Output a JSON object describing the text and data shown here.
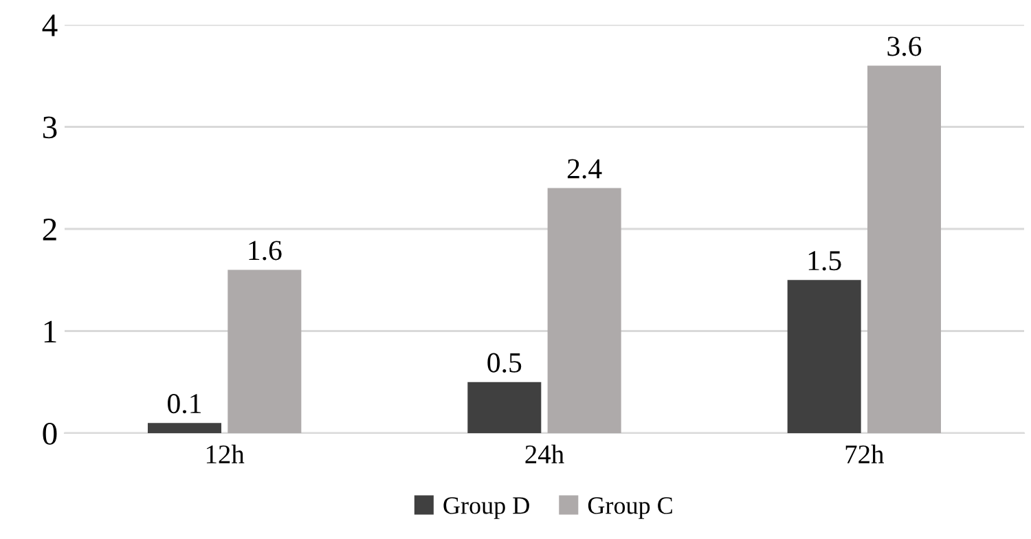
{
  "chart_data": {
    "type": "bar",
    "categories": [
      "12h",
      "24h",
      "72h"
    ],
    "series": [
      {
        "name": "Group D",
        "color": "#404040",
        "values": [
          0.1,
          0.5,
          1.5
        ]
      },
      {
        "name": "Group C",
        "color": "#aeaaaa",
        "values": [
          1.6,
          2.4,
          3.6
        ]
      }
    ],
    "ylim": [
      0,
      4
    ],
    "yticks": [
      0,
      1,
      2,
      3,
      4
    ],
    "grid": "y",
    "legend": "bottom",
    "data_labels": true
  }
}
